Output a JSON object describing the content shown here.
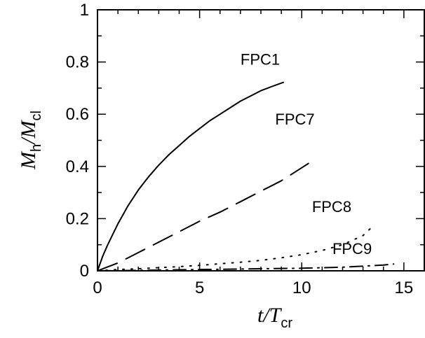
{
  "chart_data": {
    "type": "line",
    "title": "",
    "xlabel": {
      "main": "t",
      "slash": "/",
      "denom": "T",
      "sub": "cr"
    },
    "ylabel": {
      "main": "M",
      "sub": "h",
      "slash": "/",
      "denom": "M",
      "denom_sub": "cl"
    },
    "xlim": [
      0,
      16
    ],
    "ylim": [
      0,
      1
    ],
    "xticks_major": [
      0,
      5,
      10,
      15
    ],
    "xtick_labels": [
      "0",
      "5",
      "10",
      "15"
    ],
    "xticks_minor": [
      1,
      2,
      3,
      4,
      6,
      7,
      8,
      9,
      11,
      12,
      13,
      14,
      16
    ],
    "yticks_major": [
      0,
      0.2,
      0.4,
      0.6,
      0.8,
      1
    ],
    "ytick_labels": [
      "0",
      "0.2",
      "0.4",
      "0.6",
      "0.8",
      "1"
    ],
    "yticks_minor": [
      0.1,
      0.3,
      0.5,
      0.7,
      0.9
    ],
    "grid": false,
    "legend": "none",
    "series": [
      {
        "name": "FPC1",
        "style": "solid",
        "x": [
          0,
          0.25,
          0.5,
          1,
          1.5,
          2,
          2.5,
          3,
          3.5,
          4,
          4.5,
          5,
          5.5,
          6,
          6.5,
          7,
          7.5,
          8,
          8.5,
          9.1
        ],
        "y": [
          0,
          0.055,
          0.1,
          0.18,
          0.25,
          0.31,
          0.36,
          0.405,
          0.445,
          0.48,
          0.515,
          0.545,
          0.575,
          0.6,
          0.625,
          0.65,
          0.67,
          0.69,
          0.705,
          0.722
        ]
      },
      {
        "name": "FPC7",
        "style": "dashed",
        "x": [
          0,
          1,
          2,
          3,
          4,
          5,
          6,
          7,
          8,
          9,
          10,
          10.5
        ],
        "y": [
          0,
          0.03,
          0.07,
          0.11,
          0.15,
          0.19,
          0.225,
          0.265,
          0.305,
          0.345,
          0.395,
          0.42
        ]
      },
      {
        "name": "FPC8",
        "style": "dotted",
        "x": [
          0,
          1,
          2,
          3,
          4,
          5,
          6,
          7,
          8,
          9,
          10,
          11,
          12,
          13,
          13.4
        ],
        "y": [
          0,
          0.005,
          0.008,
          0.012,
          0.016,
          0.021,
          0.027,
          0.033,
          0.04,
          0.05,
          0.062,
          0.078,
          0.1,
          0.135,
          0.165
        ]
      },
      {
        "name": "FPC9",
        "style": "dashdot",
        "x": [
          0,
          2,
          4,
          6,
          8,
          10,
          12,
          13,
          14,
          14.5
        ],
        "y": [
          0,
          0.002,
          0.004,
          0.006,
          0.008,
          0.01,
          0.014,
          0.018,
          0.022,
          0.026
        ]
      }
    ],
    "annotations": [
      {
        "text": "FPC1",
        "x": 7.0,
        "y": 0.79
      },
      {
        "text": "FPC7",
        "x": 8.7,
        "y": 0.56
      },
      {
        "text": "FPC8",
        "x": 10.5,
        "y": 0.225
      },
      {
        "text": "FPC9",
        "x": 11.5,
        "y": 0.065
      }
    ]
  }
}
